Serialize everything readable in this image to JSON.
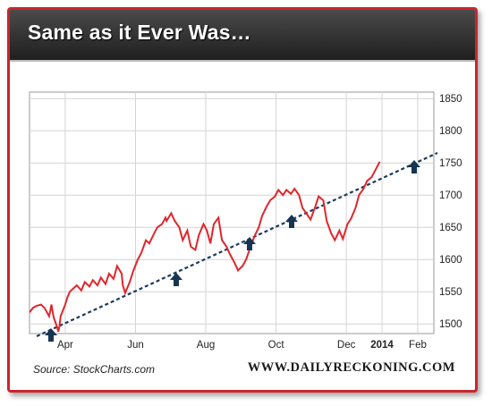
{
  "header": {
    "title": "Same as it Ever Was…"
  },
  "footer": {
    "source": "Source: StockCharts.com",
    "brand": "WWW.DAILYRECKONING.COM"
  },
  "colors": {
    "price_line": "#e0262c",
    "trend_line": "#1c3a5c",
    "arrow": "#173552",
    "frame": "#c9262c",
    "grid": "#d4d4d4"
  },
  "chart_data": {
    "type": "line",
    "title": "Same as it Ever Was…",
    "xlabel": "",
    "ylabel": "",
    "grid": true,
    "x_range": [
      "2013-03-01",
      "2014-02-15"
    ],
    "ylim": [
      1485,
      1860
    ],
    "y_axis_position": "right",
    "y_ticks": [
      1500,
      1550,
      1600,
      1650,
      1700,
      1750,
      1800,
      1850
    ],
    "x_ticks": [
      {
        "date": "2013-04-01",
        "label": "Apr",
        "bold": false
      },
      {
        "date": "2013-06-01",
        "label": "Jun",
        "bold": false
      },
      {
        "date": "2013-08-01",
        "label": "Aug",
        "bold": false
      },
      {
        "date": "2013-10-01",
        "label": "Oct",
        "bold": false
      },
      {
        "date": "2013-12-01",
        "label": "Dec",
        "bold": false
      },
      {
        "date": "2014-01-01",
        "label": "2014",
        "bold": true
      },
      {
        "date": "2014-02-01",
        "label": "Feb",
        "bold": false
      }
    ],
    "series": [
      {
        "values": [
          [
            "2013-03-01",
            1518
          ],
          [
            "2013-03-04",
            1525
          ],
          [
            "2013-03-07",
            1528
          ],
          [
            "2013-03-11",
            1530
          ],
          [
            "2013-03-14",
            1525
          ],
          [
            "2013-03-18",
            1512
          ],
          [
            "2013-03-19",
            1520
          ],
          [
            "2013-03-20",
            1530
          ],
          [
            "2013-03-22",
            1510
          ],
          [
            "2013-03-25",
            1495
          ],
          [
            "2013-03-26",
            1488
          ],
          [
            "2013-03-27",
            1497
          ],
          [
            "2013-03-28",
            1512
          ],
          [
            "2013-04-01",
            1530
          ],
          [
            "2013-04-03",
            1542
          ],
          [
            "2013-04-05",
            1550
          ],
          [
            "2013-04-08",
            1555
          ],
          [
            "2013-04-11",
            1560
          ],
          [
            "2013-04-15",
            1552
          ],
          [
            "2013-04-18",
            1565
          ],
          [
            "2013-04-22",
            1558
          ],
          [
            "2013-04-25",
            1568
          ],
          [
            "2013-04-29",
            1560
          ],
          [
            "2013-05-02",
            1572
          ],
          [
            "2013-05-06",
            1562
          ],
          [
            "2013-05-09",
            1578
          ],
          [
            "2013-05-13",
            1570
          ],
          [
            "2013-05-16",
            1590
          ],
          [
            "2013-05-20",
            1578
          ],
          [
            "2013-05-21",
            1560
          ],
          [
            "2013-05-23",
            1548
          ],
          [
            "2013-05-27",
            1565
          ],
          [
            "2013-05-30",
            1582
          ],
          [
            "2013-06-03",
            1600
          ],
          [
            "2013-06-06",
            1610
          ],
          [
            "2013-06-10",
            1630
          ],
          [
            "2013-06-13",
            1625
          ],
          [
            "2013-06-17",
            1640
          ],
          [
            "2013-06-20",
            1650
          ],
          [
            "2013-06-24",
            1655
          ],
          [
            "2013-06-27",
            1665
          ],
          [
            "2013-06-28",
            1660
          ],
          [
            "2013-07-02",
            1672
          ],
          [
            "2013-07-05",
            1660
          ],
          [
            "2013-07-09",
            1650
          ],
          [
            "2013-07-12",
            1630
          ],
          [
            "2013-07-16",
            1645
          ],
          [
            "2013-07-19",
            1620
          ],
          [
            "2013-07-23",
            1615
          ],
          [
            "2013-07-26",
            1638
          ],
          [
            "2013-07-30",
            1655
          ],
          [
            "2013-08-02",
            1645
          ],
          [
            "2013-08-05",
            1625
          ],
          [
            "2013-08-08",
            1655
          ],
          [
            "2013-08-12",
            1665
          ],
          [
            "2013-08-15",
            1630
          ],
          [
            "2013-08-19",
            1620
          ],
          [
            "2013-08-22",
            1608
          ],
          [
            "2013-08-26",
            1595
          ],
          [
            "2013-08-29",
            1583
          ],
          [
            "2013-09-02",
            1590
          ],
          [
            "2013-09-05",
            1600
          ],
          [
            "2013-09-09",
            1620
          ],
          [
            "2013-09-12",
            1635
          ],
          [
            "2013-09-16",
            1650
          ],
          [
            "2013-09-19",
            1668
          ],
          [
            "2013-09-23",
            1683
          ],
          [
            "2013-09-26",
            1692
          ],
          [
            "2013-09-30",
            1698
          ],
          [
            "2013-10-03",
            1708
          ],
          [
            "2013-10-07",
            1700
          ],
          [
            "2013-10-10",
            1708
          ],
          [
            "2013-10-14",
            1702
          ],
          [
            "2013-10-17",
            1710
          ],
          [
            "2013-10-21",
            1700
          ],
          [
            "2013-10-24",
            1680
          ],
          [
            "2013-10-28",
            1670
          ],
          [
            "2013-10-31",
            1662
          ],
          [
            "2013-11-04",
            1682
          ],
          [
            "2013-11-07",
            1698
          ],
          [
            "2013-11-11",
            1692
          ],
          [
            "2013-11-14",
            1660
          ],
          [
            "2013-11-18",
            1640
          ],
          [
            "2013-11-21",
            1630
          ],
          [
            "2013-11-25",
            1645
          ],
          [
            "2013-11-28",
            1632
          ],
          [
            "2013-12-02",
            1655
          ],
          [
            "2013-12-05",
            1663
          ],
          [
            "2013-12-09",
            1680
          ],
          [
            "2013-12-12",
            1700
          ],
          [
            "2013-12-16",
            1710
          ],
          [
            "2013-12-19",
            1722
          ],
          [
            "2013-12-23",
            1728
          ],
          [
            "2013-12-26",
            1738
          ],
          [
            "2013-12-30",
            1752
          ]
        ]
      }
    ]
  }
}
